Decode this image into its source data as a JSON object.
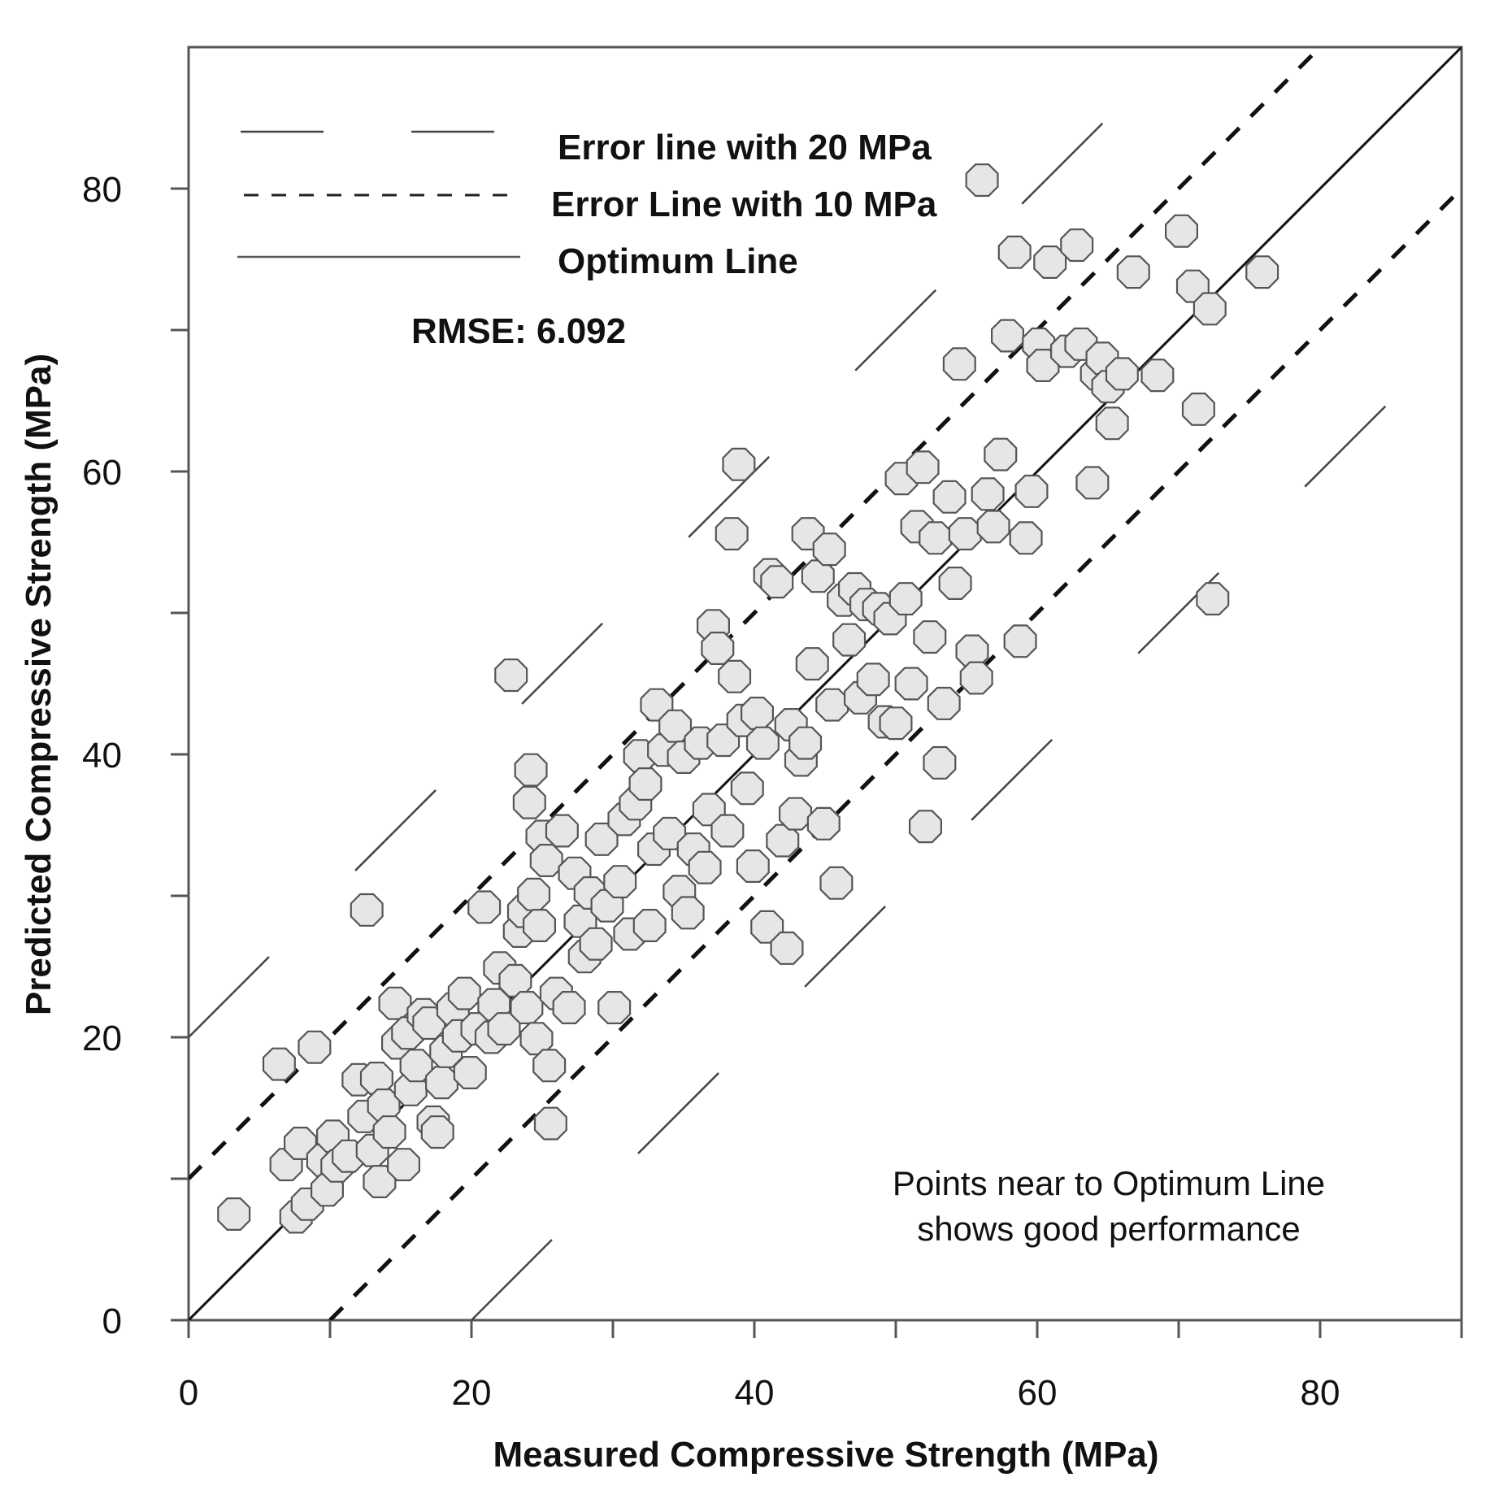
{
  "chart_data": {
    "type": "scatter",
    "xlabel": "Measured Compressive Strength (MPa)",
    "ylabel": "Predicted Compressive Strength (MPa)",
    "xlim": [
      0,
      90
    ],
    "ylim": [
      0,
      90
    ],
    "xticks_major": [
      0,
      20,
      40,
      60,
      80
    ],
    "xticks_minor": [
      10,
      30,
      50,
      70,
      90
    ],
    "yticks_major": [
      0,
      20,
      40,
      60,
      80
    ],
    "yticks_minor": [
      10,
      30,
      50,
      70
    ],
    "x_tick_labels": [
      "0",
      "20",
      "40",
      "60",
      "80"
    ],
    "y_tick_labels": [
      "0",
      "20",
      "40",
      "60",
      "80"
    ],
    "legend": [
      {
        "label": "Error line with 20 MPa",
        "style": "long-dash"
      },
      {
        "label": "Error Line with 10 MPa",
        "style": "short-dash"
      },
      {
        "label": "Optimum Line",
        "style": "solid"
      }
    ],
    "rmse_label": "RMSE: 6.092",
    "annotation_line1": "Points near to Optimum Line",
    "annotation_line2": "shows good performance",
    "reference_lines": [
      {
        "name": "optimum",
        "offset": 0
      },
      {
        "name": "error-10-upper",
        "offset": 10
      },
      {
        "name": "error-10-lower",
        "offset": -10
      },
      {
        "name": "error-20-upper",
        "offset": 20
      },
      {
        "name": "error-20-lower",
        "offset": -20
      }
    ],
    "marker_fill": "#e6e6e6",
    "marker_stroke": "#555555",
    "points": [
      [
        3.2,
        7.5
      ],
      [
        6.4,
        18.1
      ],
      [
        6.9,
        11.0
      ],
      [
        7.6,
        7.3
      ],
      [
        7.9,
        12.5
      ],
      [
        8.4,
        8.2
      ],
      [
        8.9,
        19.3
      ],
      [
        9.5,
        11.3
      ],
      [
        9.8,
        9.2
      ],
      [
        10.2,
        13.0
      ],
      [
        10.5,
        10.9
      ],
      [
        11.3,
        11.6
      ],
      [
        12.0,
        17.0
      ],
      [
        12.4,
        14.4
      ],
      [
        12.6,
        29.0
      ],
      [
        13.0,
        12.0
      ],
      [
        13.3,
        17.1
      ],
      [
        13.5,
        9.8
      ],
      [
        13.8,
        15.2
      ],
      [
        14.2,
        13.3
      ],
      [
        14.6,
        22.4
      ],
      [
        14.8,
        19.6
      ],
      [
        15.2,
        11.0
      ],
      [
        15.5,
        20.3
      ],
      [
        15.7,
        16.3
      ],
      [
        16.1,
        18.0
      ],
      [
        16.6,
        21.6
      ],
      [
        17.0,
        21.0
      ],
      [
        17.3,
        14.0
      ],
      [
        17.6,
        13.3
      ],
      [
        17.9,
        16.8
      ],
      [
        18.2,
        19.0
      ],
      [
        18.7,
        22.0
      ],
      [
        19.1,
        20.1
      ],
      [
        19.5,
        23.1
      ],
      [
        19.9,
        17.5
      ],
      [
        20.4,
        20.6
      ],
      [
        20.9,
        29.2
      ],
      [
        21.4,
        20.0
      ],
      [
        21.6,
        22.3
      ],
      [
        22.0,
        24.9
      ],
      [
        22.3,
        20.6
      ],
      [
        22.8,
        45.6
      ],
      [
        23.1,
        24.0
      ],
      [
        23.4,
        27.5
      ],
      [
        23.7,
        28.9
      ],
      [
        23.9,
        22.1
      ],
      [
        24.1,
        36.6
      ],
      [
        24.2,
        38.9
      ],
      [
        24.4,
        30.1
      ],
      [
        24.6,
        19.9
      ],
      [
        24.8,
        27.9
      ],
      [
        25.0,
        34.2
      ],
      [
        25.3,
        32.5
      ],
      [
        25.5,
        18.0
      ],
      [
        25.6,
        13.9
      ],
      [
        26.0,
        23.1
      ],
      [
        26.4,
        34.6
      ],
      [
        26.9,
        22.1
      ],
      [
        27.3,
        31.6
      ],
      [
        27.7,
        28.2
      ],
      [
        28.0,
        25.7
      ],
      [
        28.4,
        30.2
      ],
      [
        28.8,
        26.6
      ],
      [
        29.2,
        34.0
      ],
      [
        29.6,
        29.3
      ],
      [
        30.1,
        22.1
      ],
      [
        30.5,
        31.0
      ],
      [
        30.8,
        35.4
      ],
      [
        31.2,
        27.3
      ],
      [
        31.6,
        36.5
      ],
      [
        31.9,
        39.9
      ],
      [
        32.3,
        37.9
      ],
      [
        32.6,
        27.9
      ],
      [
        32.9,
        33.3
      ],
      [
        33.1,
        43.5
      ],
      [
        33.6,
        40.3
      ],
      [
        34.0,
        34.4
      ],
      [
        34.4,
        42.0
      ],
      [
        34.7,
        30.3
      ],
      [
        35.0,
        39.8
      ],
      [
        35.3,
        28.8
      ],
      [
        35.7,
        33.3
      ],
      [
        36.2,
        40.8
      ],
      [
        36.5,
        32.0
      ],
      [
        36.8,
        36.1
      ],
      [
        37.1,
        49.1
      ],
      [
        37.4,
        47.5
      ],
      [
        37.8,
        41.0
      ],
      [
        38.1,
        34.6
      ],
      [
        38.4,
        55.6
      ],
      [
        38.6,
        45.5
      ],
      [
        38.9,
        60.5
      ],
      [
        39.2,
        42.4
      ],
      [
        39.5,
        37.6
      ],
      [
        39.9,
        32.1
      ],
      [
        40.2,
        42.9
      ],
      [
        40.6,
        40.8
      ],
      [
        40.9,
        27.8
      ],
      [
        41.1,
        52.7
      ],
      [
        41.6,
        52.2
      ],
      [
        42.0,
        33.9
      ],
      [
        42.3,
        26.3
      ],
      [
        42.6,
        42.1
      ],
      [
        42.9,
        35.8
      ],
      [
        43.3,
        39.6
      ],
      [
        43.6,
        40.8
      ],
      [
        43.8,
        55.6
      ],
      [
        44.1,
        46.4
      ],
      [
        44.5,
        52.6
      ],
      [
        44.9,
        35.1
      ],
      [
        45.3,
        54.5
      ],
      [
        45.5,
        43.5
      ],
      [
        45.8,
        30.9
      ],
      [
        46.3,
        50.9
      ],
      [
        46.7,
        48.1
      ],
      [
        47.1,
        51.7
      ],
      [
        47.5,
        44.0
      ],
      [
        47.9,
        50.6
      ],
      [
        48.4,
        45.3
      ],
      [
        48.8,
        50.3
      ],
      [
        49.2,
        42.3
      ],
      [
        49.6,
        49.6
      ],
      [
        50.0,
        42.2
      ],
      [
        50.4,
        59.5
      ],
      [
        50.7,
        51.0
      ],
      [
        51.1,
        45.0
      ],
      [
        51.5,
        56.1
      ],
      [
        51.9,
        60.3
      ],
      [
        52.1,
        34.9
      ],
      [
        52.4,
        48.3
      ],
      [
        52.8,
        55.3
      ],
      [
        53.1,
        39.4
      ],
      [
        53.4,
        43.6
      ],
      [
        53.8,
        58.2
      ],
      [
        54.2,
        52.1
      ],
      [
        54.5,
        67.6
      ],
      [
        54.9,
        55.6
      ],
      [
        55.4,
        47.3
      ],
      [
        55.7,
        45.4
      ],
      [
        56.1,
        80.6
      ],
      [
        56.5,
        58.4
      ],
      [
        56.9,
        56.1
      ],
      [
        57.4,
        61.2
      ],
      [
        57.9,
        69.6
      ],
      [
        58.4,
        75.5
      ],
      [
        58.8,
        48.0
      ],
      [
        59.2,
        55.3
      ],
      [
        59.6,
        58.6
      ],
      [
        60.1,
        69.0
      ],
      [
        60.4,
        67.5
      ],
      [
        60.9,
        74.8
      ],
      [
        62.1,
        68.5
      ],
      [
        62.8,
        76.0
      ],
      [
        63.1,
        69.0
      ],
      [
        63.9,
        59.2
      ],
      [
        64.2,
        66.9
      ],
      [
        64.6,
        68.0
      ],
      [
        65.0,
        66.0
      ],
      [
        65.3,
        63.4
      ],
      [
        66.0,
        66.9
      ],
      [
        66.8,
        74.1
      ],
      [
        68.5,
        66.8
      ],
      [
        70.2,
        77.0
      ],
      [
        71.0,
        73.1
      ],
      [
        71.4,
        64.4
      ],
      [
        72.2,
        71.5
      ],
      [
        72.4,
        51.0
      ],
      [
        75.9,
        74.1
      ]
    ]
  }
}
